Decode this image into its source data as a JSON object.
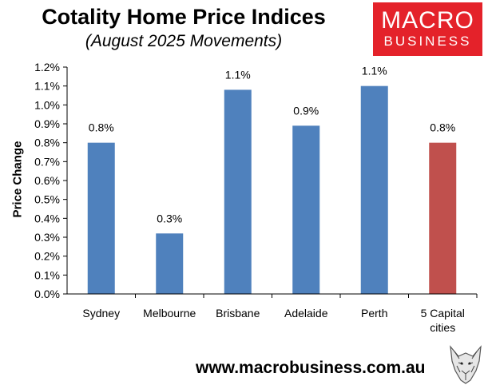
{
  "header": {
    "title": "Cotality Home Price Indices",
    "subtitle": "(August 2025 Movements)"
  },
  "logo": {
    "line1": "MACRO",
    "line2": "BUSINESS"
  },
  "footer": {
    "website": "www.macrobusiness.com.au"
  },
  "colors": {
    "bar": "#4f81bd",
    "highlight": "#c0504d",
    "logo": "#e4222a"
  },
  "chart_data": {
    "type": "bar",
    "title": "Cotality Home Price Indices",
    "subtitle": "(August 2025 Movements)",
    "xlabel": "",
    "ylabel": "Price Change",
    "categories": [
      [
        "Sydney"
      ],
      [
        "Melbourne"
      ],
      [
        "Brisbane"
      ],
      [
        "Adelaide"
      ],
      [
        "Perth"
      ],
      [
        "5 Capital",
        "cities"
      ]
    ],
    "values": [
      0.8,
      0.32,
      1.08,
      0.89,
      1.1,
      0.8
    ],
    "data_labels": [
      "0.8%",
      "0.3%",
      "1.1%",
      "0.9%",
      "1.1%",
      "0.8%"
    ],
    "highlight_index": 5,
    "ylim": [
      0,
      1.2
    ],
    "yticks": [
      "0.0%",
      "0.1%",
      "0.2%",
      "0.3%",
      "0.4%",
      "0.5%",
      "0.6%",
      "0.7%",
      "0.8%",
      "0.9%",
      "1.0%",
      "1.1%",
      "1.2%"
    ],
    "grid": false,
    "legend": "none"
  }
}
